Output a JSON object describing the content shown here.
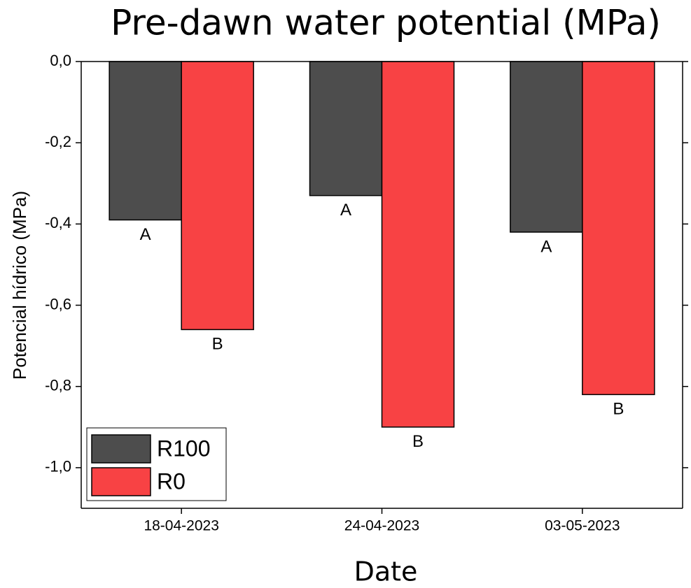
{
  "chart_data": {
    "type": "bar",
    "title": "Pre-dawn water potential (MPa)",
    "x_label": "Date",
    "y_label": "Potencial hídrico (MPa)",
    "categories": [
      "18-04-2023",
      "24-04-2023",
      "03-05-2023"
    ],
    "series": [
      {
        "name": "R100",
        "color": "#4d4d4d",
        "values": [
          -0.39,
          -0.33,
          -0.42
        ],
        "letters": [
          "A",
          "A",
          "A"
        ]
      },
      {
        "name": "R0",
        "color": "#f84244",
        "values": [
          -0.66,
          -0.9,
          -0.82
        ],
        "letters": [
          "B",
          "B",
          "B"
        ]
      }
    ],
    "ylim": [
      -1.1,
      0
    ],
    "yticks": [
      {
        "value": 0,
        "label": "0,0"
      },
      {
        "value": -0.2,
        "label": "-0,2"
      },
      {
        "value": -0.4,
        "label": "-0,4"
      },
      {
        "value": -0.6,
        "label": "-0,6"
      },
      {
        "value": -0.8,
        "label": "-0,8"
      },
      {
        "value": -1.0,
        "label": "-1,0"
      }
    ],
    "legend": "lower-left"
  }
}
